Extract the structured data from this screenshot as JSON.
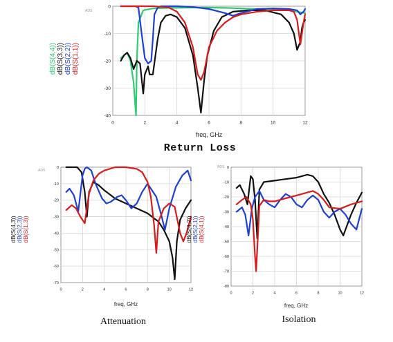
{
  "page": {
    "background": "#ffffff",
    "captions": {
      "top": "Return Loss",
      "bottom_left": "Attenuation",
      "bottom_right": "Isolation"
    }
  },
  "chart_data": [
    {
      "id": "return_loss",
      "type": "line",
      "corner_label": "ADS",
      "xlabel": "freq, GHz",
      "xlim": [
        0,
        12
      ],
      "ylim": [
        -40,
        0
      ],
      "xticks": [
        "0",
        "2",
        "4",
        "6",
        "8",
        "10",
        "12"
      ],
      "yticks": [
        "0",
        "-10",
        "-20",
        "-30",
        "-40"
      ],
      "legend_position": "left-vertical",
      "grid": true,
      "series": [
        {
          "name": "dB(S(4,4))",
          "color": "#2ecc71",
          "x": [
            0.5,
            0.9,
            1.1,
            1.3,
            1.45,
            1.5,
            1.6,
            1.9,
            2.5,
            3.5,
            5,
            6,
            7,
            8,
            9,
            10,
            11,
            11.5,
            12
          ],
          "y": [
            -19,
            -17,
            -20,
            -28,
            -40,
            -20,
            -6,
            -1.5,
            -0.8,
            -0.6,
            -0.5,
            -0.5,
            -0.6,
            -0.8,
            -1,
            -1.3,
            -1.5,
            -2,
            -2.5
          ]
        },
        {
          "name": "dB(S(3,3))",
          "color": "#111111",
          "x": [
            0.5,
            0.7,
            0.9,
            1.1,
            1.3,
            1.5,
            1.7,
            1.9,
            2.0,
            2.2,
            2.3,
            2.5,
            2.8,
            3.0,
            3.3,
            3.6,
            4,
            4.5,
            5,
            5.3,
            5.5,
            5.7,
            5.9,
            6.3,
            6.8,
            7.5,
            8.5,
            9.5,
            10.5,
            11,
            11.3,
            11.5,
            11.7,
            11.8,
            11.9,
            12
          ],
          "y": [
            -20,
            -18,
            -17,
            -19,
            -23,
            -20,
            -21,
            -32,
            -25,
            -22,
            -25,
            -25,
            -12,
            -6,
            -3.5,
            -3,
            -4,
            -8,
            -18,
            -30,
            -39,
            -27,
            -18,
            -9,
            -4,
            -2,
            -1.5,
            -1.5,
            -3,
            -6,
            -10,
            -16,
            -13,
            -8,
            -6,
            -5
          ]
        },
        {
          "name": "dB(S(2,2))",
          "color": "#1e3fd4",
          "x": [
            0.5,
            1.0,
            1.4,
            1.6,
            1.8,
            2.0,
            2.2,
            2.4,
            2.5,
            2.6,
            2.8,
            3,
            4,
            5,
            6,
            7,
            7.5,
            8,
            9,
            10,
            11,
            11.5,
            11.7,
            11.9,
            12
          ],
          "y": [
            0,
            0,
            0,
            -0.5,
            -10,
            -19,
            -21,
            -20,
            -12,
            -3,
            -0.5,
            0,
            0,
            -0.3,
            -1,
            -2.5,
            -3.5,
            -2.5,
            -1,
            -0.8,
            -1,
            -1.5,
            -3,
            -2,
            -1
          ]
        },
        {
          "name": "dB(S(1,1))",
          "color": "#d81b1b",
          "x": [
            0.5,
            1.5,
            2.5,
            3.0,
            3.5,
            4,
            4.5,
            5,
            5.3,
            5.5,
            5.7,
            6,
            6.5,
            7,
            7.5,
            8,
            9,
            10,
            11,
            11.3,
            11.5,
            11.7,
            11.9,
            12
          ],
          "y": [
            0,
            0,
            0,
            -0.2,
            -0.5,
            -2,
            -6,
            -15,
            -25,
            -27,
            -24,
            -15,
            -9,
            -6,
            -4,
            -3,
            -2,
            -1.5,
            -1.5,
            -2,
            -5,
            -14,
            -6,
            -3
          ]
        }
      ]
    },
    {
      "id": "attenuation",
      "type": "line",
      "corner_label": "ADS",
      "xlabel": "freq, GHz",
      "xlim": [
        0,
        12
      ],
      "ylim": [
        -70,
        0
      ],
      "xticks": [
        "0",
        "2",
        "4",
        "6",
        "8",
        "10",
        "12"
      ],
      "yticks": [
        "0",
        "-10",
        "-20",
        "-30",
        "-40",
        "-50",
        "-60",
        "-70"
      ],
      "legend_position": "left-vertical",
      "grid": true,
      "series": [
        {
          "name": "dB(S(4,3))",
          "color": "#111111",
          "x": [
            0.5,
            1.5,
            1.9,
            2.2,
            2.4,
            2.6,
            3,
            3.5,
            4,
            5,
            6,
            7,
            8,
            9,
            9.5,
            10,
            10.3,
            10.5,
            10.7,
            11,
            11.5,
            12
          ],
          "y": [
            0,
            0,
            -3,
            -15,
            -30,
            -15,
            -9,
            -11,
            -14,
            -19,
            -22,
            -25,
            -28,
            -33,
            -38,
            -45,
            -55,
            -68,
            -45,
            -32,
            -25,
            -20
          ]
        },
        {
          "name": "dB(S(2,3))",
          "color": "#1e3fd4",
          "x": [
            0.5,
            0.8,
            1.2,
            1.6,
            2.0,
            2.2,
            2.4,
            2.8,
            3.2,
            3.8,
            4.2,
            4.6,
            5.2,
            5.6,
            6,
            6.5,
            7,
            7.5,
            8,
            8.8,
            9.3,
            9.6,
            10,
            10.6,
            11.2,
            11.7,
            12
          ],
          "y": [
            -15,
            -13,
            -17,
            -27,
            -5,
            -1,
            0,
            -2,
            -10,
            -19,
            -22,
            -21,
            -18,
            -17,
            -20,
            -25,
            -22,
            -15,
            -10,
            -18,
            -30,
            -38,
            -25,
            -12,
            -5,
            -2,
            -8
          ]
        },
        {
          "name": "dB(S(1,3))",
          "color": "#d81b1b",
          "x": [
            0.5,
            1.0,
            1.4,
            1.8,
            2.2,
            2.4,
            2.6,
            3,
            3.5,
            4,
            4.5,
            5,
            6,
            7,
            7.5,
            8,
            8.3,
            8.6,
            8.8,
            9,
            9.5,
            10,
            10.5,
            11,
            11.3,
            11.6,
            12
          ],
          "y": [
            -26,
            -23,
            -25,
            -30,
            -34,
            -25,
            -16,
            -8,
            -4,
            -2,
            -1,
            0,
            0,
            -1,
            -3,
            -9,
            -18,
            -35,
            -52,
            -33,
            -25,
            -22,
            -24,
            -40,
            -45,
            -40,
            -30
          ]
        }
      ]
    },
    {
      "id": "isolation",
      "type": "line",
      "corner_label": "ADS",
      "xlabel": "freq, GHz",
      "xlim": [
        0,
        12
      ],
      "ylim": [
        -80,
        0
      ],
      "xticks": [
        "0",
        "2",
        "4",
        "6",
        "8",
        "10",
        "12"
      ],
      "yticks": [
        "0",
        "-10",
        "-20",
        "-30",
        "-40",
        "-50",
        "-60",
        "-70",
        "-80"
      ],
      "legend_position": "left-vertical",
      "grid": true,
      "series": [
        {
          "name": "dB(S(4,2))",
          "color": "#111111",
          "x": [
            0.5,
            0.8,
            1.2,
            1.5,
            1.8,
            2.0,
            2.2,
            2.4,
            2.6,
            3,
            4,
            5,
            6,
            7,
            7.5,
            8,
            8.5,
            9,
            9.5,
            10,
            10.3,
            10.6,
            11,
            11.5,
            12
          ],
          "y": [
            -14,
            -12,
            -18,
            -25,
            -6,
            -8,
            -22,
            -48,
            -15,
            -10,
            -9,
            -8,
            -7,
            -5,
            -6,
            -10,
            -18,
            -24,
            -32,
            -42,
            -46,
            -40,
            -32,
            -24,
            -17
          ]
        },
        {
          "name": "dB(S(2,1))",
          "color": "#1e3fd4",
          "x": [
            0.5,
            1.0,
            1.3,
            1.6,
            1.9,
            2.2,
            2.6,
            3,
            3.5,
            4,
            4.5,
            5,
            5.5,
            6,
            6.5,
            7,
            7.5,
            8,
            8.5,
            9,
            9.5,
            10,
            10.5,
            11,
            11.5,
            12
          ],
          "y": [
            -30,
            -27,
            -32,
            -46,
            -28,
            -20,
            -16,
            -22,
            -25,
            -27,
            -22,
            -18,
            -20,
            -25,
            -27,
            -22,
            -19,
            -22,
            -30,
            -34,
            -30,
            -28,
            -32,
            -38,
            -42,
            -28
          ]
        },
        {
          "name": "dB(S(4,1))",
          "color": "#d81b1b",
          "x": [
            0.5,
            1.0,
            1.4,
            1.8,
            2.0,
            2.2,
            2.3,
            2.4,
            2.6,
            3,
            3.5,
            4,
            5,
            6,
            7,
            7.5,
            8,
            8.5,
            9,
            10,
            11,
            12
          ],
          "y": [
            -25,
            -22,
            -20,
            -25,
            -35,
            -60,
            -70,
            -55,
            -26,
            -22,
            -23,
            -23,
            -21,
            -19,
            -17,
            -16,
            -18,
            -22,
            -27,
            -28,
            -25,
            -23
          ]
        }
      ]
    }
  ]
}
